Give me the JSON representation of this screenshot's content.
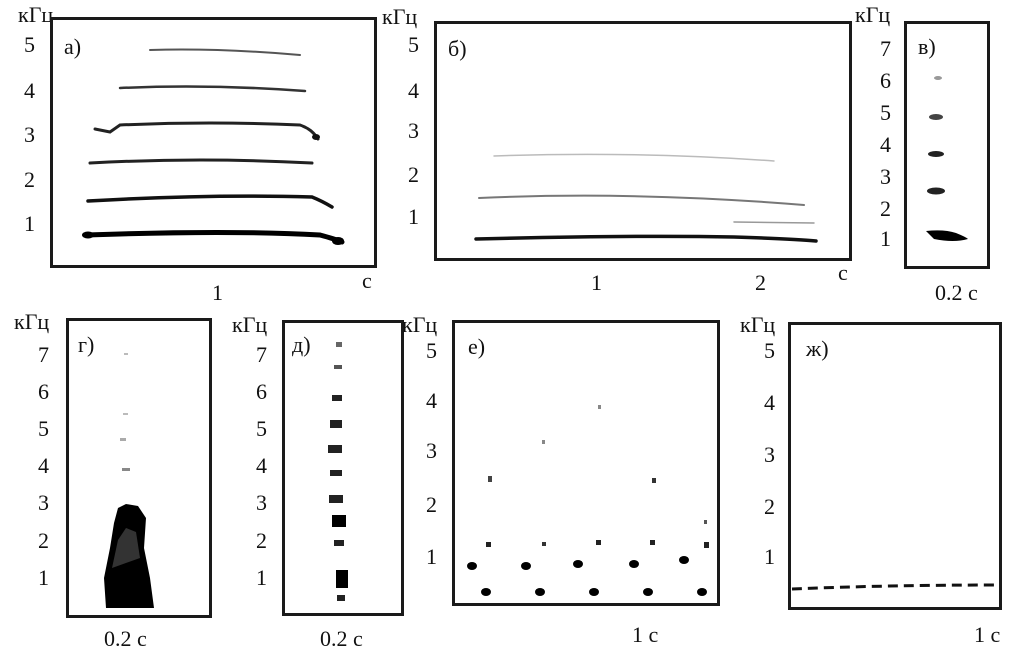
{
  "unit_khz": "кГц",
  "panels": {
    "a": {
      "letter": "а)",
      "y_ticks": [
        "5",
        "4",
        "3",
        "2",
        "1"
      ],
      "x_ticks": [
        "1"
      ],
      "x_unit": "с"
    },
    "b": {
      "letter": "б)",
      "y_ticks": [
        "5",
        "4",
        "3",
        "2",
        "1"
      ],
      "x_ticks": [
        "1",
        "2"
      ],
      "x_unit": "с"
    },
    "v": {
      "letter": "в)",
      "y_ticks": [
        "7",
        "6",
        "5",
        "4",
        "3",
        "2",
        "1"
      ],
      "x_label": "0.2 с"
    },
    "g": {
      "letter": "г)",
      "y_ticks": [
        "7",
        "6",
        "5",
        "4",
        "3",
        "2",
        "1"
      ],
      "x_label": "0.2 с"
    },
    "d": {
      "letter": "д)",
      "y_ticks": [
        "7",
        "6",
        "5",
        "4",
        "3",
        "2",
        "1"
      ],
      "x_label": "0.2 с"
    },
    "e": {
      "letter": "е)",
      "y_ticks": [
        "5",
        "4",
        "3",
        "2",
        "1"
      ],
      "x_label": "1 с"
    },
    "zh": {
      "letter": "ж)",
      "y_ticks": [
        "5",
        "4",
        "3",
        "2",
        "1"
      ],
      "x_label": "1 с"
    }
  }
}
